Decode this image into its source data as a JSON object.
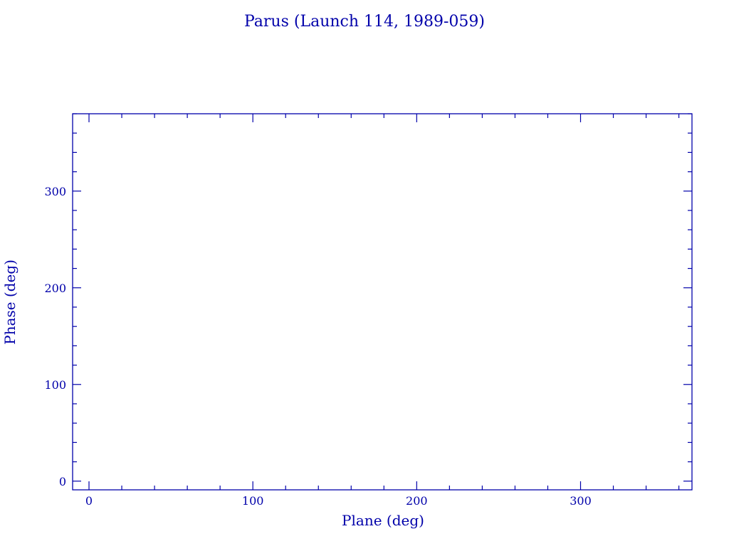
{
  "chart_data": {
    "type": "scatter",
    "title": "Parus (Launch 114, 1989-059)",
    "xlabel": "Plane (deg)",
    "ylabel": "Phase (deg)",
    "xlim": [
      -10,
      368
    ],
    "ylim": [
      -9,
      380
    ],
    "xticks": [
      0,
      100,
      200,
      300
    ],
    "yticks": [
      0,
      100,
      200,
      300
    ],
    "minor_tick_step": 20,
    "series": [
      {
        "x": [],
        "y": []
      }
    ],
    "grid": false,
    "color": "#0000aa"
  }
}
